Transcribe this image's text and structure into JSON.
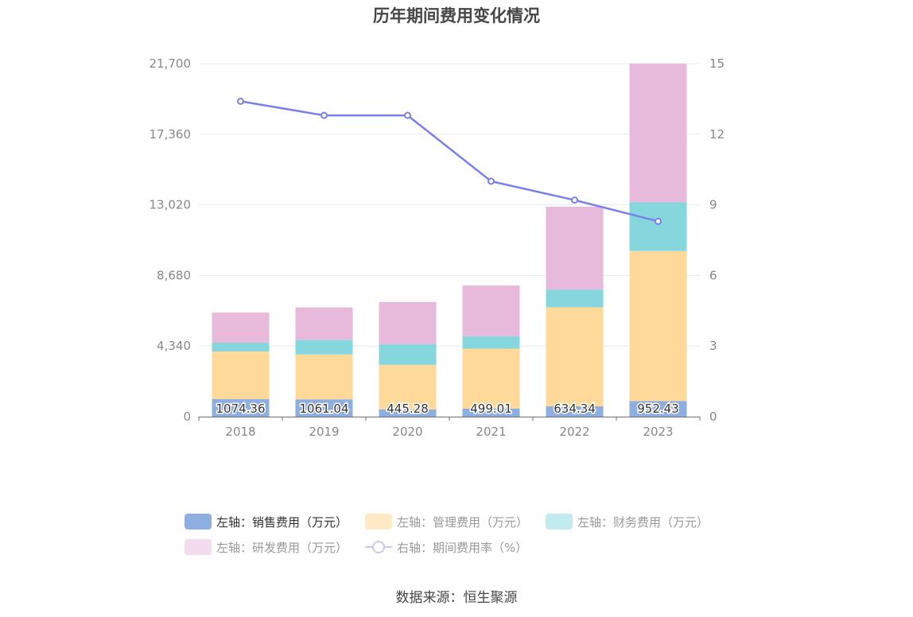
{
  "source_text": "数据来源：恒生聚源",
  "chart_data": {
    "type": "bar",
    "title": "历年期间费用变化情况",
    "categories": [
      "2018",
      "2019",
      "2020",
      "2021",
      "2022",
      "2023"
    ],
    "y_left": {
      "min": 0,
      "max": 21700,
      "ticks": [
        "0",
        "4,340",
        "8,680",
        "13,020",
        "17,360",
        "21,700"
      ]
    },
    "y_right": {
      "min": 0,
      "max": 15,
      "ticks": [
        "0",
        "3",
        "6",
        "9",
        "12",
        "15"
      ]
    },
    "series": [
      {
        "name": "左轴：销售费用（万元）",
        "axis": "left",
        "kind": "bar",
        "values": [
          1074.36,
          1061.04,
          445.28,
          499.01,
          634.34,
          952.43
        ],
        "labels": [
          "1074.36",
          "1061.04",
          "445.28",
          "499.01",
          "634.34",
          "952.43"
        ],
        "color": "#8eaee0",
        "legend_color": "#8eaee0"
      },
      {
        "name": "左轴：管理费用（万元）",
        "axis": "left",
        "kind": "bar",
        "values": [
          2930,
          2760,
          2740,
          3680,
          6090,
          9230
        ],
        "color": "#ffd99a",
        "legend_color": "#ffe9c5"
      },
      {
        "name": "左轴：财务费用（万元）",
        "axis": "left",
        "kind": "bar",
        "values": [
          540,
          900,
          1260,
          760,
          1080,
          2990
        ],
        "color": "#86d7dd",
        "legend_color": "#c1ebee"
      },
      {
        "name": "左轴：研发费用（万元）",
        "axis": "left",
        "kind": "bar",
        "values": [
          1850,
          1990,
          2600,
          3120,
          5100,
          8530
        ],
        "color": "#e7badc",
        "legend_color": "#f3dcee"
      },
      {
        "name": "右轴：期间费用率（%）",
        "axis": "right",
        "kind": "line",
        "values": [
          13.4,
          12.8,
          12.8,
          10.0,
          9.2,
          8.3
        ],
        "color": "#7b7fea"
      }
    ],
    "grid": true,
    "legend_position": "bottom"
  }
}
